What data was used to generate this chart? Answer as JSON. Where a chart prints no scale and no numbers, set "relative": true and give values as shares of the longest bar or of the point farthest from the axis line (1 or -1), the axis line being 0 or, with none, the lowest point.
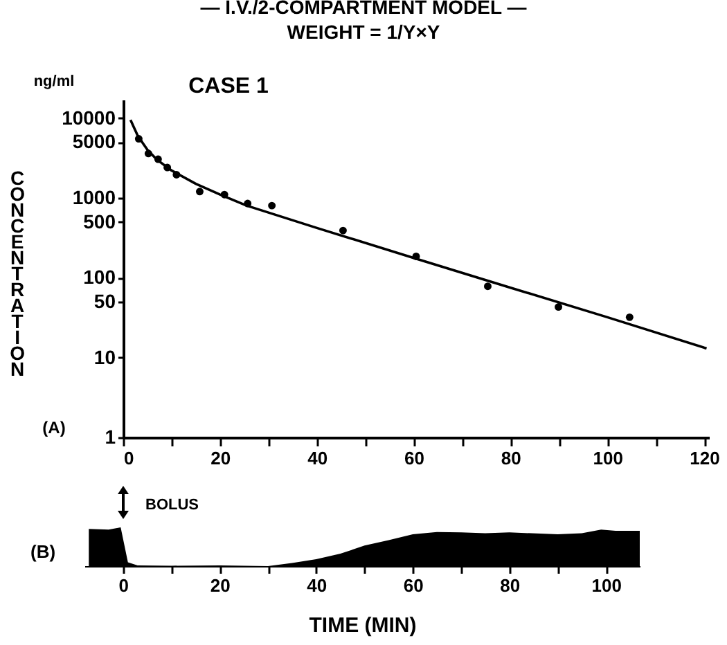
{
  "chart_data": [
    {
      "type": "scatter",
      "title": "— I.V./2-COMPARTMENT MODEL —",
      "subtitle": "WEIGHT = 1/Y×Y",
      "ylabel": "CONCENTRATION",
      "annotations": [
        "ng/ml",
        "CASE 1",
        "(A)"
      ],
      "log": "y",
      "grid": false,
      "xlim": [
        0,
        121
      ],
      "xticks": [
        0,
        {
          "value": 10,
          "label": null
        },
        20,
        {
          "value": 30,
          "label": null
        },
        40,
        {
          "value": 50,
          "label": null
        },
        60,
        {
          "value": 70,
          "label": null
        },
        80,
        {
          "value": 90,
          "label": null
        },
        100,
        {
          "value": 110,
          "label": null
        },
        120
      ],
      "ylim": [
        1,
        17000
      ],
      "yticks": [
        1,
        10,
        50,
        100,
        500,
        1000,
        5000,
        10000
      ],
      "series": [
        {
          "marker": "circle",
          "color": "#000000",
          "x": [
            3.2,
            5.2,
            7.2,
            9.1,
            11,
            15.8,
            20.9,
            25.7,
            30.7,
            45.4,
            60.5,
            75.3,
            89.9,
            104.6
          ],
          "values": [
            5500,
            3600,
            3050,
            2400,
            1950,
            1200,
            1100,
            850,
            800,
            390,
            185,
            78,
            43,
            32
          ]
        },
        {
          "type": "line",
          "color": "#000000",
          "x": [
            1.5,
            3,
            5,
            7,
            10,
            15,
            20,
            25.5,
            40,
            60,
            80,
            100,
            120.5
          ],
          "values": [
            9500,
            6000,
            4000,
            3000,
            2200,
            1500,
            1100,
            800,
            420,
            177,
            75,
            32,
            13
          ]
        }
      ]
    },
    {
      "type": "area",
      "relative": true,
      "xlabel": "TIME (MIN)",
      "annotations": [
        "(B)",
        "BOLUS"
      ],
      "xlim": [
        -8,
        107
      ],
      "xticks": [
        0,
        {
          "value": 10,
          "label": null
        },
        20,
        {
          "value": 30,
          "label": null
        },
        40,
        {
          "value": 50,
          "label": null
        },
        60,
        {
          "value": 70,
          "label": null
        },
        80,
        {
          "value": 90,
          "label": null
        },
        100
      ],
      "color": "#000000",
      "x": [
        -7.1,
        -3,
        -0.5,
        1,
        3,
        10,
        20,
        30,
        35,
        40,
        45,
        50,
        55,
        60,
        65,
        70,
        75,
        80,
        90,
        95,
        99,
        102,
        107
      ],
      "values": [
        0.96,
        0.94,
        1,
        0.1,
        0.02,
        0.01,
        0.02,
        0,
        0.08,
        0.18,
        0.32,
        0.53,
        0.67,
        0.82,
        0.88,
        0.87,
        0.85,
        0.87,
        0.82,
        0.85,
        0.94,
        0.91,
        0.91
      ]
    }
  ]
}
